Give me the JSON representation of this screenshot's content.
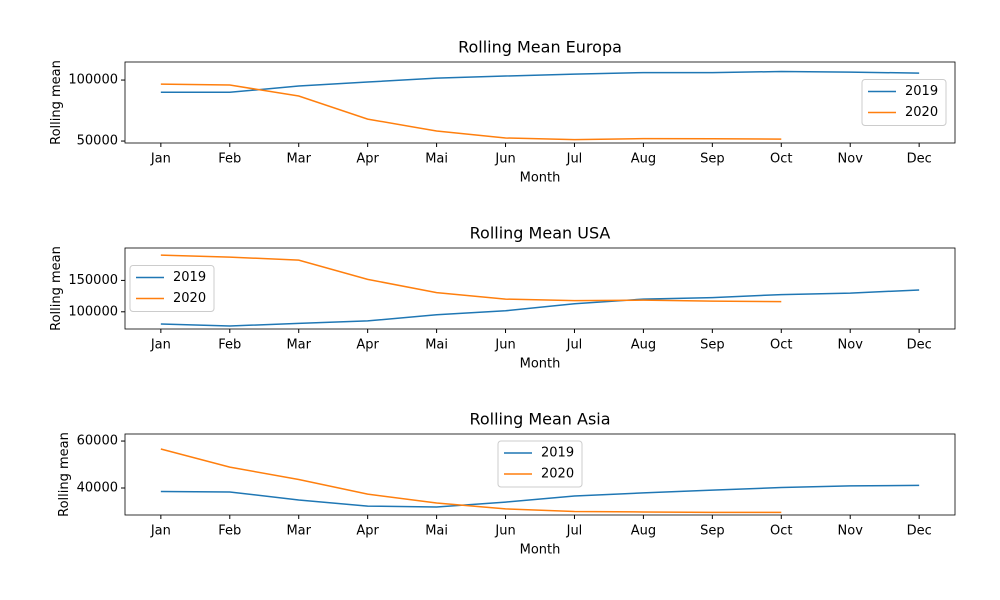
{
  "chart_data": [
    {
      "type": "line",
      "title": "Rolling Mean Europa",
      "x_label": "Month",
      "y_label": "Rolling mean",
      "categories": [
        "Jan",
        "Feb",
        "Mar",
        "Apr",
        "Mai",
        "Jun",
        "Jul",
        "Aug",
        "Sep",
        "Oct",
        "Nov",
        "Dec"
      ],
      "series": [
        {
          "name": "2019",
          "color": "#1f77b4",
          "values": [
            90000,
            90000,
            95100,
            98400,
            101600,
            103300,
            104900,
            106100,
            106100,
            107000,
            106500,
            105700
          ]
        },
        {
          "name": "2020",
          "color": "#ff7f0e",
          "values": [
            96700,
            95900,
            86900,
            68000,
            58200,
            52500,
            51200,
            52000,
            51900,
            51600,
            null,
            null
          ]
        }
      ],
      "ylim": [
        48400,
        114800
      ],
      "yticks": [
        50000,
        100000
      ],
      "legend": "center right"
    },
    {
      "type": "line",
      "title": "Rolling Mean USA",
      "x_label": "Month",
      "y_label": "Rolling mean",
      "categories": [
        "Jan",
        "Feb",
        "Mar",
        "Apr",
        "Mai",
        "Jun",
        "Jul",
        "Aug",
        "Sep",
        "Oct",
        "Nov",
        "Dec"
      ],
      "series": [
        {
          "name": "2019",
          "color": "#1f77b4",
          "values": [
            80600,
            77400,
            81500,
            85500,
            95200,
            101600,
            112900,
            120200,
            122600,
            127400,
            129800,
            134700
          ]
        },
        {
          "name": "2020",
          "color": "#ff7f0e",
          "values": [
            190300,
            187100,
            182300,
            151600,
            130600,
            120200,
            117700,
            118500,
            116900,
            116100,
            null,
            null
          ]
        }
      ],
      "ylim": [
        72600,
        201600
      ],
      "yticks": [
        100000,
        150000
      ],
      "legend": "center left"
    },
    {
      "type": "line",
      "title": "Rolling Mean Asia",
      "x_label": "Month",
      "y_label": "Rolling mean",
      "categories": [
        "Jan",
        "Feb",
        "Mar",
        "Apr",
        "Mai",
        "Jun",
        "Jul",
        "Aug",
        "Sep",
        "Oct",
        "Nov",
        "Dec"
      ],
      "series": [
        {
          "name": "2019",
          "color": "#1f77b4",
          "values": [
            38500,
            38300,
            34900,
            32300,
            31900,
            34000,
            36600,
            37900,
            39100,
            40200,
            40900,
            41100
          ]
        },
        {
          "name": "2020",
          "color": "#ff7f0e",
          "values": [
            56600,
            48900,
            43600,
            37400,
            33600,
            31100,
            30000,
            29800,
            29600,
            29600,
            null,
            null
          ]
        }
      ],
      "ylim": [
        28500,
        63000
      ],
      "yticks": [
        40000,
        60000
      ],
      "legend": "upper center"
    }
  ]
}
